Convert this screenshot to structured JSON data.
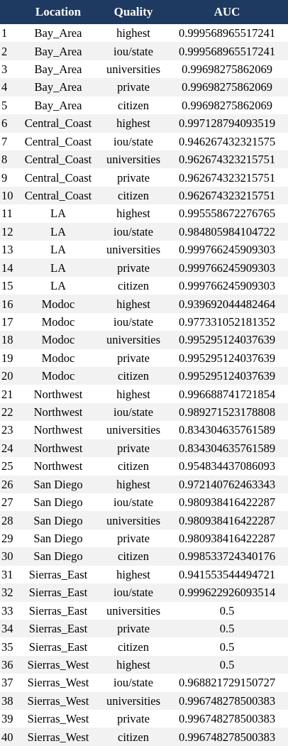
{
  "headers": [
    "",
    "Location",
    "Quality",
    "AUC"
  ],
  "rows": [
    [
      "1",
      "Bay_Area",
      "highest",
      "0.999568965517241"
    ],
    [
      "2",
      "Bay_Area",
      "iou/state",
      "0.999568965517241"
    ],
    [
      "3",
      "Bay_Area",
      "universities",
      "0.99698275862069"
    ],
    [
      "4",
      "Bay_Area",
      "private",
      "0.99698275862069"
    ],
    [
      "5",
      "Bay_Area",
      "citizen",
      "0.99698275862069"
    ],
    [
      "6",
      "Central_Coast",
      "highest",
      "0.997128794093519"
    ],
    [
      "7",
      "Central_Coast",
      "iou/state",
      "0.946267432321575"
    ],
    [
      "8",
      "Central_Coast",
      "universities",
      "0.962674323215751"
    ],
    [
      "9",
      "Central_Coast",
      "private",
      "0.962674323215751"
    ],
    [
      "10",
      "Central_Coast",
      "citizen",
      "0.962674323215751"
    ],
    [
      "11",
      "LA",
      "highest",
      "0.995558672276765"
    ],
    [
      "12",
      "LA",
      "iou/state",
      "0.984805984104722"
    ],
    [
      "13",
      "LA",
      "universities",
      "0.999766245909303"
    ],
    [
      "14",
      "LA",
      "private",
      "0.999766245909303"
    ],
    [
      "15",
      "LA",
      "citizen",
      "0.999766245909303"
    ],
    [
      "16",
      "Modoc",
      "highest",
      "0.939692044482464"
    ],
    [
      "17",
      "Modoc",
      "iou/state",
      "0.977331052181352"
    ],
    [
      "18",
      "Modoc",
      "universities",
      "0.995295124037639"
    ],
    [
      "19",
      "Modoc",
      "private",
      "0.995295124037639"
    ],
    [
      "20",
      "Modoc",
      "citizen",
      "0.995295124037639"
    ],
    [
      "21",
      "Northwest",
      "highest",
      "0.996688741721854"
    ],
    [
      "22",
      "Northwest",
      "iou/state",
      "0.989271523178808"
    ],
    [
      "23",
      "Northwest",
      "universities",
      "0.834304635761589"
    ],
    [
      "24",
      "Northwest",
      "private",
      "0.834304635761589"
    ],
    [
      "25",
      "Northwest",
      "citizen",
      "0.954834437086093"
    ],
    [
      "26",
      "San Diego",
      "highest",
      "0.972140762463343"
    ],
    [
      "27",
      "San Diego",
      "iou/state",
      "0.980938416422287"
    ],
    [
      "28",
      "San Diego",
      "universities",
      "0.980938416422287"
    ],
    [
      "29",
      "San Diego",
      "private",
      "0.980938416422287"
    ],
    [
      "30",
      "San Diego",
      "citizen",
      "0.998533724340176"
    ],
    [
      "31",
      "Sierras_East",
      "highest",
      "0.941553544494721"
    ],
    [
      "32",
      "Sierras_East",
      "iou/state",
      "0.999622926093514"
    ],
    [
      "33",
      "Sierras_East",
      "universities",
      "0.5"
    ],
    [
      "34",
      "Sierras_East",
      "private",
      "0.5"
    ],
    [
      "35",
      "Sierras_East",
      "citizen",
      "0.5"
    ],
    [
      "36",
      "Sierras_West",
      "highest",
      "0.5"
    ],
    [
      "37",
      "Sierras_West",
      "iou/state",
      "0.968821729150727"
    ],
    [
      "38",
      "Sierras_West",
      "universities",
      "0.996748278500383"
    ],
    [
      "39",
      "Sierras_West",
      "private",
      "0.996748278500383"
    ],
    [
      "40",
      "Sierras_West",
      "citizen",
      "0.996748278500383"
    ]
  ],
  "colors": {
    "header_bg": "#1f3a60",
    "header_text": "#ffffff",
    "row_alt": "#f2f2f2"
  }
}
